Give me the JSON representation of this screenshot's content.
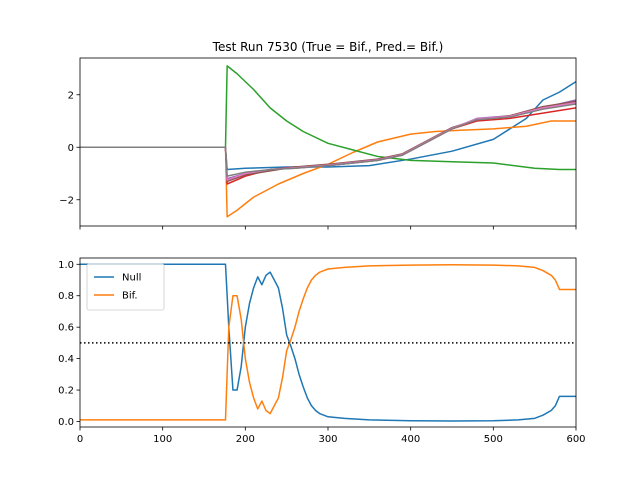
{
  "figure": {
    "title": "Test Run 7530 (True = Bif., Pred.= Bif.)"
  },
  "chart_data": [
    {
      "type": "line",
      "title": "Test Run 7530 (True = Bif., Pred.= Bif.)",
      "xlabel": "",
      "ylabel": "",
      "xlim": [
        0,
        600
      ],
      "ylim": [
        -3,
        3.4
      ],
      "xticks": [],
      "yticks": [
        -2,
        0,
        2
      ],
      "ytick_labels": [
        "−2",
        "0",
        "2"
      ],
      "grid": false,
      "series": [
        {
          "color": "#1f77b4",
          "x": [
            0,
            176,
            178,
            200,
            250,
            300,
            350,
            400,
            450,
            500,
            540,
            560,
            580,
            600
          ],
          "y": [
            0,
            0,
            -0.85,
            -0.8,
            -0.75,
            -0.75,
            -0.7,
            -0.45,
            -0.15,
            0.3,
            1.1,
            1.8,
            2.1,
            2.5
          ]
        },
        {
          "color": "#ff7f0e",
          "x": [
            0,
            176,
            178,
            190,
            210,
            240,
            270,
            300,
            330,
            360,
            400,
            430,
            460,
            500,
            540,
            570,
            600
          ],
          "y": [
            0,
            0,
            -2.65,
            -2.4,
            -1.9,
            -1.4,
            -1.0,
            -0.65,
            -0.2,
            0.2,
            0.5,
            0.6,
            0.65,
            0.7,
            0.8,
            1.0,
            1.0
          ]
        },
        {
          "color": "#2ca02c",
          "x": [
            0,
            176,
            178,
            190,
            210,
            230,
            250,
            270,
            300,
            330,
            360,
            400,
            450,
            500,
            550,
            580,
            600
          ],
          "y": [
            0,
            0,
            3.1,
            2.8,
            2.2,
            1.5,
            1.0,
            0.6,
            0.15,
            -0.1,
            -0.35,
            -0.5,
            -0.55,
            -0.6,
            -0.8,
            -0.85,
            -0.85
          ]
        },
        {
          "color": "#d62728",
          "x": [
            0,
            176,
            178,
            200,
            230,
            260,
            300,
            330,
            360,
            390,
            420,
            450,
            480,
            520,
            560,
            600
          ],
          "y": [
            0,
            0,
            -1.4,
            -1.1,
            -0.85,
            -0.75,
            -0.7,
            -0.6,
            -0.5,
            -0.3,
            0.2,
            0.7,
            1.0,
            1.1,
            1.3,
            1.5
          ]
        },
        {
          "color": "#9467bd",
          "x": [
            0,
            176,
            178,
            200,
            230,
            260,
            300,
            330,
            360,
            390,
            420,
            450,
            480,
            520,
            560,
            600
          ],
          "y": [
            0,
            0,
            -1.2,
            -1.0,
            -0.85,
            -0.8,
            -0.7,
            -0.6,
            -0.5,
            -0.3,
            0.2,
            0.7,
            1.1,
            1.2,
            1.5,
            1.8
          ]
        },
        {
          "color": "#8c564b",
          "x": [
            0,
            176,
            178,
            200,
            230,
            260,
            300,
            330,
            360,
            390,
            420,
            450,
            480,
            520,
            560,
            600
          ],
          "y": [
            0,
            0,
            -1.3,
            -1.05,
            -0.9,
            -0.75,
            -0.65,
            -0.55,
            -0.45,
            -0.25,
            0.25,
            0.75,
            1.05,
            1.2,
            1.55,
            1.75
          ]
        },
        {
          "color": "#e377c2",
          "x": [
            0,
            176,
            178,
            200,
            230,
            260,
            300,
            330,
            360,
            390,
            420,
            450,
            480,
            520,
            560,
            600
          ],
          "y": [
            0,
            0,
            -1.25,
            -1.0,
            -0.85,
            -0.78,
            -0.68,
            -0.58,
            -0.48,
            -0.28,
            0.22,
            0.72,
            1.08,
            1.18,
            1.5,
            1.7
          ]
        },
        {
          "color": "#7f7f7f",
          "x": [
            0,
            176,
            178,
            200,
            230,
            260,
            300,
            330,
            360,
            390,
            420,
            450,
            480,
            520,
            560,
            600
          ],
          "y": [
            0,
            0,
            -1.1,
            -0.95,
            -0.85,
            -0.8,
            -0.7,
            -0.6,
            -0.5,
            -0.3,
            0.2,
            0.7,
            1.05,
            1.15,
            1.45,
            1.65
          ]
        }
      ]
    },
    {
      "type": "line",
      "title": "",
      "xlabel": "",
      "ylabel": "",
      "xlim": [
        0,
        600
      ],
      "ylim": [
        -0.035,
        1.04
      ],
      "xticks": [
        0,
        100,
        200,
        300,
        400,
        500,
        600
      ],
      "yticks": [
        0.0,
        0.2,
        0.4,
        0.6,
        0.8,
        1.0
      ],
      "ytick_labels": [
        "0.0",
        "0.2",
        "0.4",
        "0.6",
        "0.8",
        "1.0"
      ],
      "grid": false,
      "legend": {
        "placement": "upper-left",
        "entries": [
          "Null",
          "Bif."
        ]
      },
      "threshold": {
        "y": 0.5,
        "style": "dotted",
        "color": "#000000"
      },
      "series": [
        {
          "name": "Null",
          "color": "#1f77b4",
          "x": [
            0,
            176,
            180,
            185,
            190,
            195,
            200,
            205,
            210,
            215,
            220,
            225,
            230,
            235,
            240,
            245,
            250,
            255,
            260,
            265,
            270,
            275,
            280,
            285,
            290,
            295,
            300,
            320,
            350,
            400,
            450,
            500,
            530,
            550,
            560,
            570,
            575,
            580,
            600
          ],
          "y": [
            1.0,
            1.0,
            0.6,
            0.2,
            0.2,
            0.35,
            0.6,
            0.75,
            0.85,
            0.92,
            0.87,
            0.93,
            0.95,
            0.9,
            0.85,
            0.72,
            0.55,
            0.48,
            0.4,
            0.3,
            0.22,
            0.15,
            0.1,
            0.07,
            0.05,
            0.04,
            0.03,
            0.02,
            0.01,
            0.005,
            0.003,
            0.005,
            0.01,
            0.02,
            0.04,
            0.07,
            0.1,
            0.16,
            0.16
          ]
        },
        {
          "name": "Bif.",
          "color": "#ff7f0e",
          "x": [
            0,
            176,
            180,
            185,
            190,
            195,
            200,
            205,
            210,
            215,
            220,
            225,
            230,
            235,
            240,
            245,
            250,
            255,
            260,
            265,
            270,
            275,
            280,
            285,
            290,
            295,
            300,
            320,
            350,
            400,
            450,
            500,
            530,
            550,
            560,
            570,
            575,
            580,
            600
          ],
          "y": [
            0.01,
            0.01,
            0.6,
            0.8,
            0.8,
            0.65,
            0.4,
            0.25,
            0.15,
            0.08,
            0.13,
            0.07,
            0.05,
            0.1,
            0.15,
            0.28,
            0.45,
            0.52,
            0.6,
            0.7,
            0.78,
            0.85,
            0.9,
            0.93,
            0.95,
            0.96,
            0.97,
            0.98,
            0.99,
            0.995,
            0.997,
            0.995,
            0.99,
            0.98,
            0.96,
            0.93,
            0.9,
            0.84,
            0.84
          ]
        }
      ]
    }
  ]
}
